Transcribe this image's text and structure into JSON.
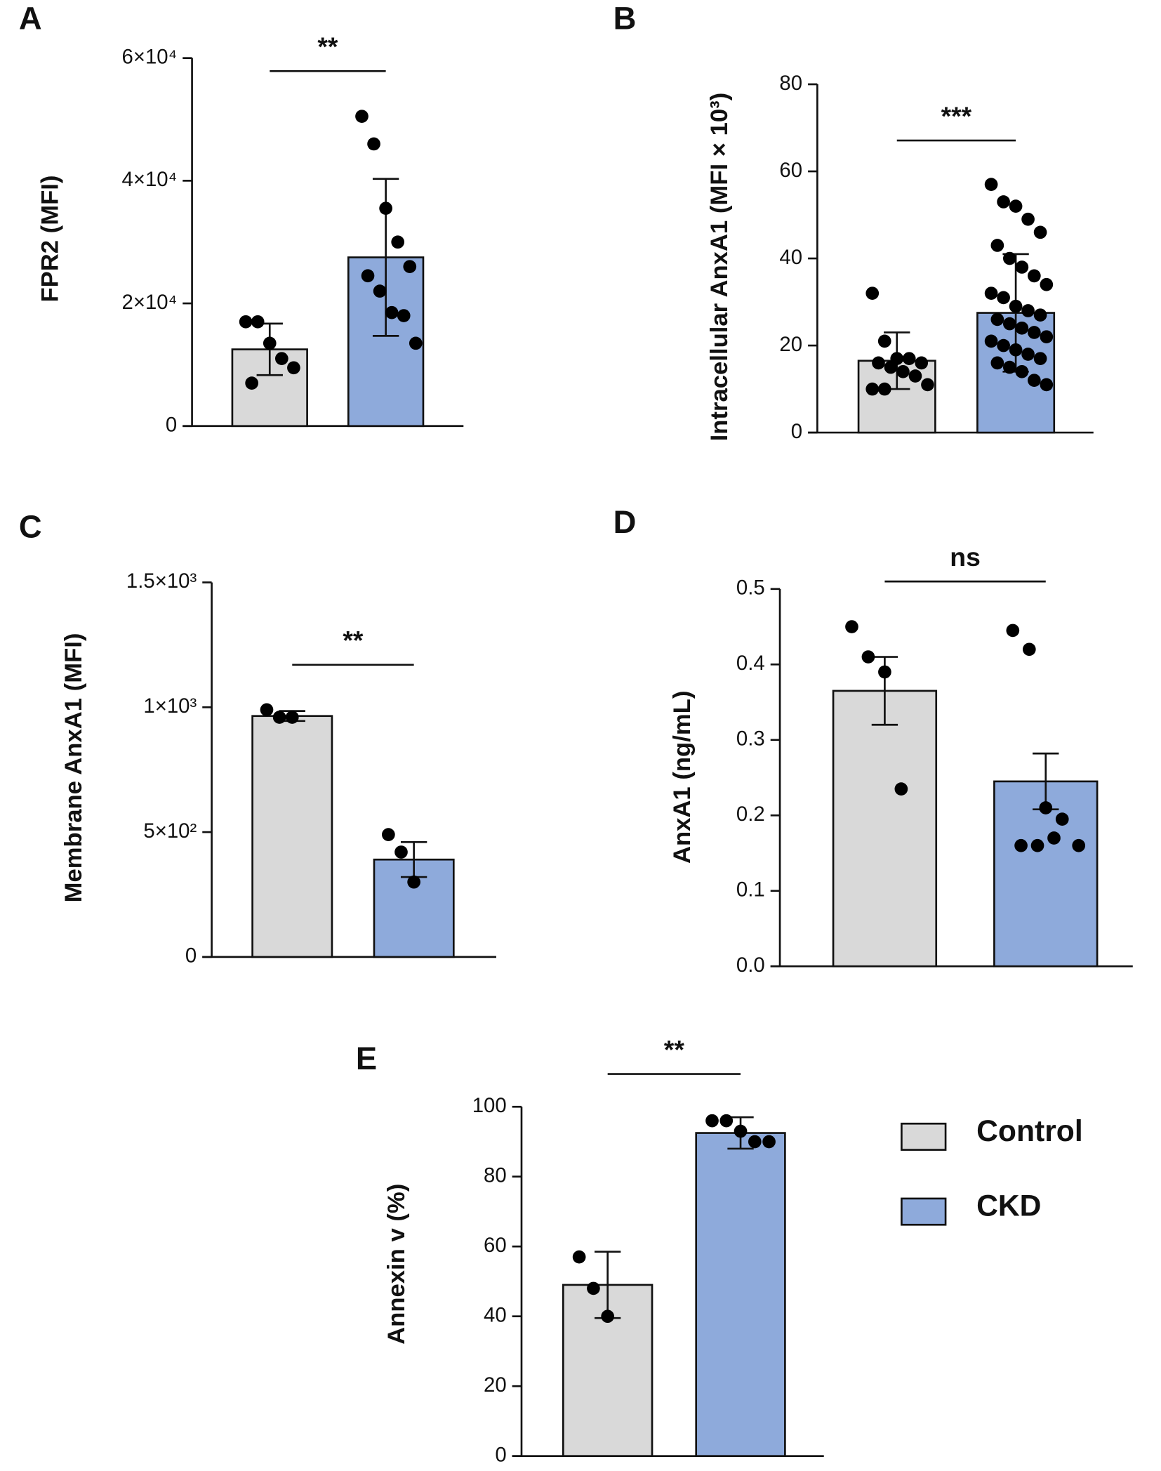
{
  "chart_data": [
    {
      "type": "bar",
      "panel": "A",
      "ylabel": "FPR2  (MFI)",
      "annotation": "**",
      "colors": [
        "#d9d9d9",
        "#8eaadb"
      ],
      "values": [
        12500,
        27500
      ],
      "errors": [
        4200,
        12800
      ],
      "points": [
        [
          17000,
          17000,
          13500,
          11000,
          9500,
          7000
        ],
        [
          50500,
          46000,
          35500,
          30000,
          26000,
          24500,
          22000,
          18500,
          18000,
          13500
        ]
      ],
      "ylim": [
        0,
        60000
      ],
      "yticks": [
        0,
        {
          "value": 20000,
          "label": "2×10⁴"
        },
        {
          "value": 40000,
          "label": "4×10⁴"
        },
        {
          "value": 60000,
          "label": "6×10⁴"
        }
      ]
    },
    {
      "type": "bar",
      "panel": "B",
      "ylabel": "Intracellular  AnxA1 (MFI × 10³)",
      "annotation": "***",
      "colors": [
        "#d9d9d9",
        "#8eaadb"
      ],
      "values": [
        16.5,
        27.5
      ],
      "errors": [
        6.5,
        13.5
      ],
      "points": [
        [
          32,
          21,
          17,
          17,
          16,
          16,
          15,
          14,
          13,
          11,
          10,
          10
        ],
        [
          57,
          53,
          52,
          49,
          46,
          43,
          40,
          38,
          36,
          34,
          32,
          31,
          29,
          28,
          27,
          26,
          25,
          24,
          23,
          22,
          21,
          20,
          19,
          18,
          17,
          16,
          15,
          14,
          12,
          11
        ]
      ],
      "ylim": [
        0,
        80
      ],
      "yticks": [
        0,
        20,
        40,
        60,
        80
      ]
    },
    {
      "type": "bar",
      "panel": "C",
      "ylabel": "Membrane AnxA1 (MFI)",
      "annotation": "**",
      "colors": [
        "#d9d9d9",
        "#8eaadb"
      ],
      "values": [
        965,
        390
      ],
      "errors": [
        20,
        70
      ],
      "points": [
        [
          990,
          960,
          960
        ],
        [
          490,
          420,
          300
        ]
      ],
      "ylim": [
        0,
        1500
      ],
      "yticks": [
        0,
        {
          "value": 500,
          "label": "5×10²"
        },
        {
          "value": 1000,
          "label": "1×10³"
        },
        {
          "value": 1500,
          "label": "1.5×10³"
        }
      ]
    },
    {
      "type": "bar",
      "panel": "D",
      "ylabel": "AnxA1  (ng/mL)",
      "annotation": "ns",
      "colors": [
        "#d9d9d9",
        "#8eaadb"
      ],
      "values": [
        0.365,
        0.245
      ],
      "errors": [
        0.045,
        0.037
      ],
      "points": [
        [
          0.45,
          0.41,
          0.39,
          0.235
        ],
        [
          0.445,
          0.42,
          0.21,
          0.195,
          0.16,
          0.16,
          0.16,
          0.17
        ]
      ],
      "ylim": [
        0,
        0.5
      ],
      "yticks": [
        {
          "value": 0,
          "label": "0.0"
        },
        0.1,
        0.2,
        0.3,
        0.4,
        0.5
      ]
    },
    {
      "type": "bar",
      "panel": "E",
      "ylabel": "Annexin v (%)",
      "annotation": "**",
      "colors": [
        "#d9d9d9",
        "#8eaadb"
      ],
      "values": [
        49,
        92.5
      ],
      "errors": [
        9.5,
        4.5
      ],
      "points": [
        [
          57,
          48,
          40
        ],
        [
          96,
          96,
          93,
          90,
          90
        ]
      ],
      "ylim": [
        0,
        100
      ],
      "yticks": [
        0,
        20,
        40,
        60,
        80,
        100
      ],
      "legend": [
        "Control",
        "CKD"
      ]
    }
  ]
}
